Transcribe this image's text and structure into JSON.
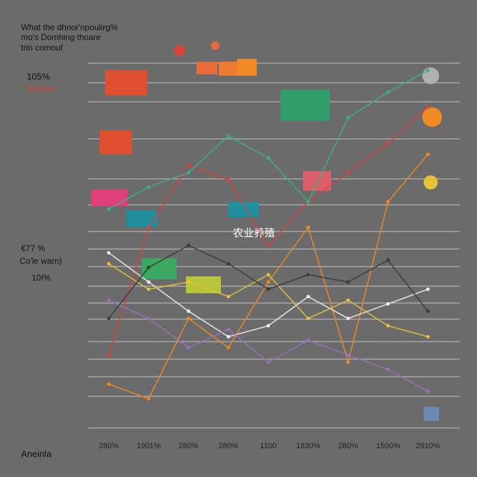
{
  "chart_data": {
    "type": "line",
    "title_lines": [
      "What the dhnor'npoulirg%",
      "mo's Domhing thoare",
      "trin comouf"
    ],
    "annotations": [
      "105%",
      "Dhidcers",
      "€77 %",
      "Co'le warn)",
      "10I%",
      "农业养殖"
    ],
    "footer": "Aneinla",
    "categories": [
      "280%",
      "1901%",
      "280%",
      "280%",
      "1100",
      "1830%",
      "280%",
      "1500%",
      "2910%"
    ],
    "ylim": [
      0,
      100
    ],
    "series": [
      {
        "color": "#d9443a",
        "values": [
          20,
          55,
          72,
          68,
          50,
          62,
          70,
          78,
          88
        ]
      },
      {
        "color": "#f08a24",
        "values": [
          12,
          8,
          30,
          22,
          40,
          55,
          18,
          62,
          75
        ]
      },
      {
        "color": "#eeeeee",
        "values": [
          48,
          40,
          32,
          25,
          28,
          36,
          30,
          34,
          38
        ]
      },
      {
        "color": "#3bb08f",
        "values": [
          60,
          66,
          70,
          80,
          74,
          62,
          85,
          92,
          98
        ]
      },
      {
        "color": "#9a6fc0",
        "values": [
          35,
          30,
          22,
          27,
          18,
          24,
          20,
          16,
          10
        ]
      },
      {
        "color": "#e8c33a",
        "values": [
          45,
          38,
          40,
          36,
          42,
          30,
          35,
          28,
          25
        ]
      },
      {
        "color": "#3a3a3a",
        "values": [
          30,
          44,
          50,
          45,
          38,
          42,
          40,
          46,
          32
        ]
      }
    ]
  }
}
